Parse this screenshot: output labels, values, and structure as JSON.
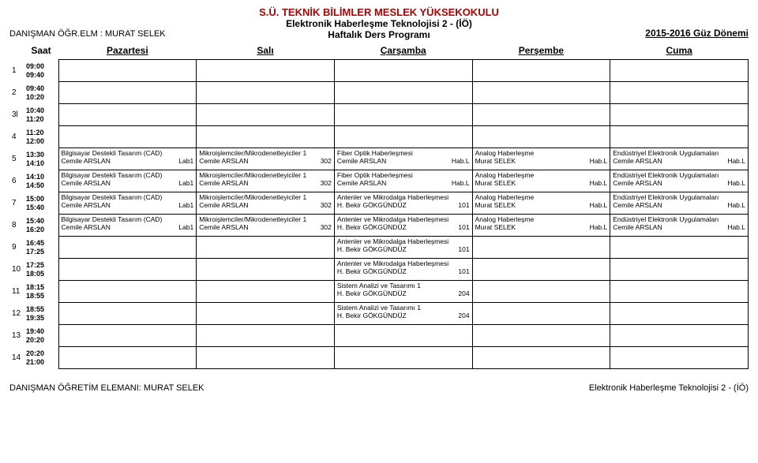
{
  "header": {
    "school": "S.Ü. TEKNİK BİLİMLER MESLEK YÜKSEKOKULU",
    "dept": "Elektronik Haberleşme Teknolojisi 2 - (İÖ)",
    "subtitle": "Haftalık Ders Programı",
    "advisor": "DANIŞMAN ÖĞR.ELM : MURAT SELEK",
    "term": "2015-2016  Güz Dönemi"
  },
  "columns": {
    "saat": "Saat",
    "days": [
      "Pazartesi",
      "Salı",
      "Çarşamba",
      "Perşembe",
      "Cuma"
    ]
  },
  "rows": [
    {
      "idx": "1",
      "t1": "09:00",
      "t2": "09:40",
      "cells": [
        null,
        null,
        null,
        null,
        null
      ]
    },
    {
      "idx": "2",
      "t1": "09:40",
      "t2": "10:20",
      "cells": [
        null,
        null,
        null,
        null,
        null
      ]
    },
    {
      "idx": "3l",
      "t1": "10:40",
      "t2": "11:20",
      "cells": [
        null,
        null,
        null,
        null,
        null
      ]
    },
    {
      "idx": "4",
      "t1": "11:20",
      "t2": "12:00",
      "cells": [
        null,
        null,
        null,
        null,
        null
      ]
    },
    {
      "idx": "5",
      "t1": "13:30",
      "t2": "14:10",
      "cells": [
        {
          "c": "Bilgisayar Destekli Tasarım (CAD)",
          "i": "Cemile ARSLAN",
          "r": "Lab1"
        },
        {
          "c": "Mikroişlemciler/Mikrodenetleyiciler 1",
          "i": "Cemile ARSLAN",
          "r": "302"
        },
        {
          "c": "Fiber Optik Haberleşmesi",
          "i": "Cemile ARSLAN",
          "r": "Hab.L"
        },
        {
          "c": "Analog Haberleşme",
          "i": "Murat SELEK",
          "r": "Hab.L"
        },
        {
          "c": "Endüstriyel Elektronik Uygulamaları",
          "i": "Cemile ARSLAN",
          "r": "Hab.L"
        }
      ]
    },
    {
      "idx": "6",
      "t1": "14:10",
      "t2": "14:50",
      "cells": [
        {
          "c": "Bilgisayar Destekli Tasarım (CAD)",
          "i": "Cemile ARSLAN",
          "r": "Lab1"
        },
        {
          "c": "Mikroişlemciler/Mikrodenetleyiciler 1",
          "i": "Cemile ARSLAN",
          "r": "302"
        },
        {
          "c": "Fiber Optik Haberleşmesi",
          "i": "Cemile ARSLAN",
          "r": "Hab.L"
        },
        {
          "c": "Analog Haberleşme",
          "i": "Murat SELEK",
          "r": "Hab.L"
        },
        {
          "c": "Endüstriyel Elektronik Uygulamaları",
          "i": "Cemile ARSLAN",
          "r": "Hab.L"
        }
      ]
    },
    {
      "idx": "7",
      "t1": "15:00",
      "t2": "15:40",
      "cells": [
        {
          "c": "Bilgisayar Destekli Tasarım (CAD)",
          "i": "Cemile ARSLAN",
          "r": "Lab1"
        },
        {
          "c": "Mikroişlemciler/Mikrodenetleyiciler 1",
          "i": "Cemile ARSLAN",
          "r": "302"
        },
        {
          "c": "Antenler ve Mikrodalga Haberleşmesi",
          "i": "H. Bekir GÖKGÜNDÜZ",
          "r": "101"
        },
        {
          "c": "Analog Haberleşme",
          "i": "Murat SELEK",
          "r": "Hab.L"
        },
        {
          "c": "Endüstriyel Elektronik Uygulamaları",
          "i": "Cemile ARSLAN",
          "r": "Hab.L"
        }
      ]
    },
    {
      "idx": "8",
      "t1": "15:40",
      "t2": "16:20",
      "cells": [
        {
          "c": "Bilgisayar Destekli Tasarım (CAD)",
          "i": "Cemile ARSLAN",
          "r": "Lab1"
        },
        {
          "c": "Mikroişlemciler/Mikrodenetleyiciler 1",
          "i": "Cemile ARSLAN",
          "r": "302"
        },
        {
          "c": "Antenler ve Mikrodalga Haberleşmesi",
          "i": "H. Bekir GÖKGÜNDÜZ",
          "r": "101"
        },
        {
          "c": "Analog Haberleşme",
          "i": "Murat SELEK",
          "r": "Hab.L"
        },
        {
          "c": "Endüstriyel Elektronik Uygulamaları",
          "i": "Cemile ARSLAN",
          "r": "Hab.L"
        }
      ]
    },
    {
      "idx": "9",
      "t1": "16:45",
      "t2": "17:25",
      "cells": [
        null,
        null,
        {
          "c": "Antenler ve Mikrodalga Haberleşmesi",
          "i": "H. Bekir GÖKGÜNDÜZ",
          "r": "101"
        },
        null,
        null
      ]
    },
    {
      "idx": "10",
      "t1": "17:25",
      "t2": "18:05",
      "cells": [
        null,
        null,
        {
          "c": "Antenler ve Mikrodalga Haberleşmesi",
          "i": "H. Bekir GÖKGÜNDÜZ",
          "r": "101"
        },
        null,
        null
      ]
    },
    {
      "idx": "11",
      "t1": "18:15",
      "t2": "18:55",
      "cells": [
        null,
        null,
        {
          "c": "Sistem Analizi ve Tasarımı 1",
          "i": "H. Bekir GÖKGÜNDÜZ",
          "r": "204"
        },
        null,
        null
      ]
    },
    {
      "idx": "12",
      "t1": "18:55",
      "t2": "19:35",
      "cells": [
        null,
        null,
        {
          "c": "Sistem Analizi ve Tasarımı 1",
          "i": "H. Bekir GÖKGÜNDÜZ",
          "r": "204"
        },
        null,
        null
      ]
    },
    {
      "idx": "13",
      "t1": "19:40",
      "t2": "20:20",
      "cells": [
        null,
        null,
        null,
        null,
        null
      ]
    },
    {
      "idx": "14",
      "t1": "20:20",
      "t2": "21:00",
      "cells": [
        null,
        null,
        null,
        null,
        null
      ]
    }
  ],
  "footer": {
    "left": "DANIŞMAN ÖĞRETİM ELEMANI: MURAT SELEK",
    "right": "Elektronik Haberleşme Teknolojisi 2 - (İÖ)"
  }
}
